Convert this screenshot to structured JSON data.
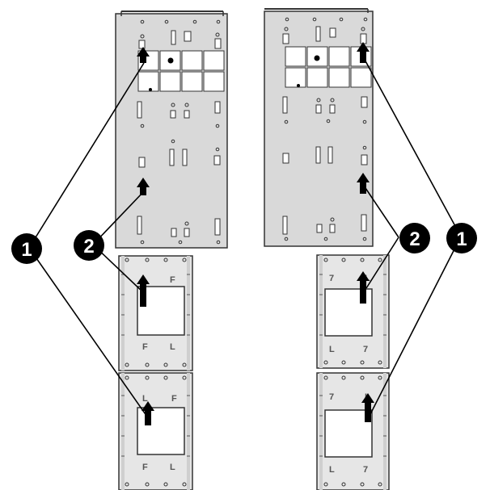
{
  "callouts": {
    "one": "1",
    "two": "2"
  },
  "colors": {
    "panel_fill": "#d9d9d9",
    "panel_stroke": "#333333",
    "line": "#000000",
    "callout_fill": "#000000",
    "callout_text": "#ffffff"
  },
  "icons": {
    "arrow": "up-arrow-icon",
    "callout": "numbered-callout-circle"
  }
}
